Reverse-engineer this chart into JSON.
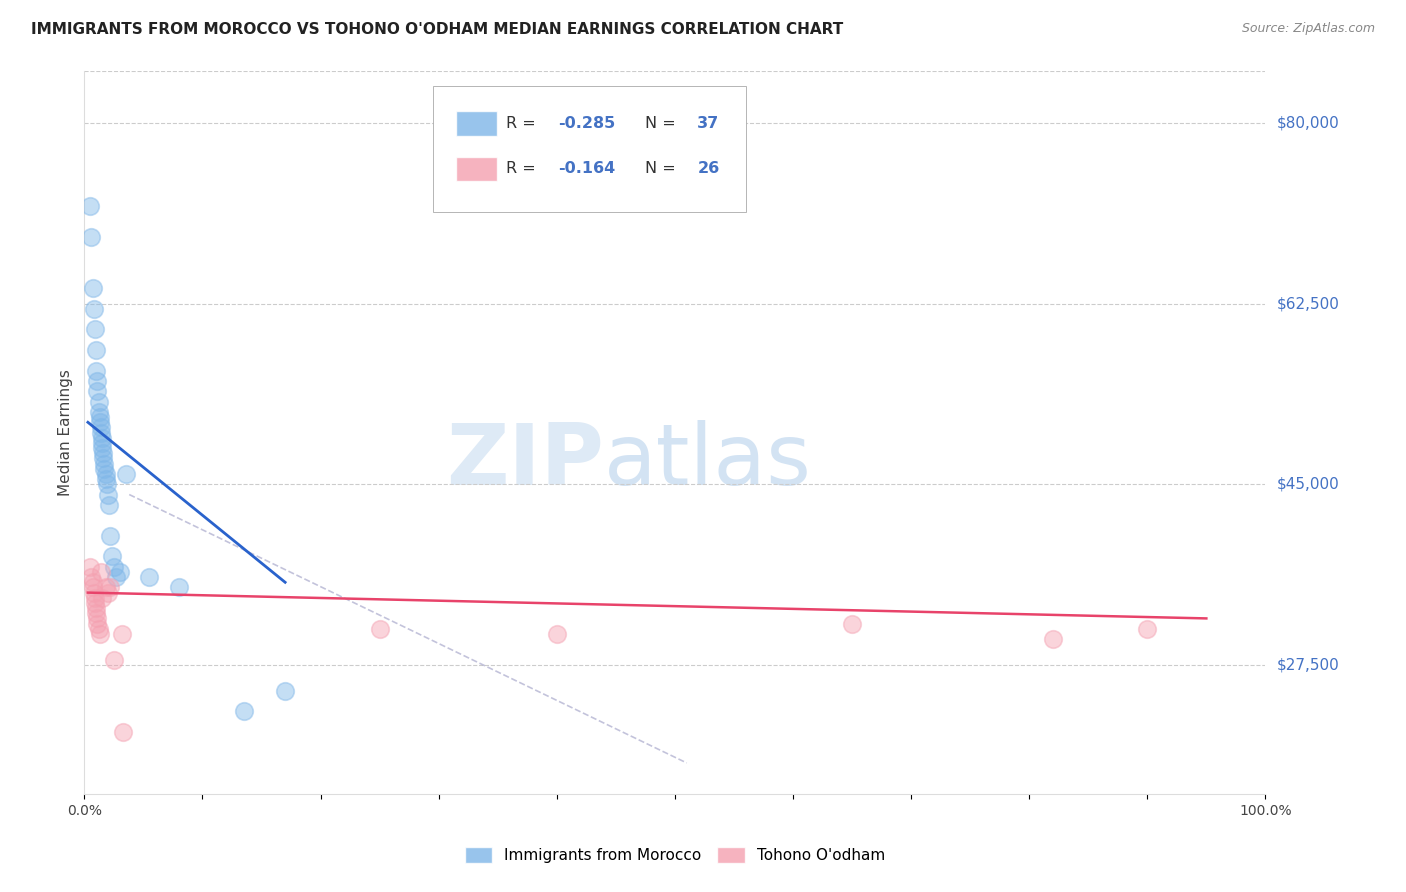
{
  "title": "IMMIGRANTS FROM MOROCCO VS TOHONO O'ODHAM MEDIAN EARNINGS CORRELATION CHART",
  "source": "Source: ZipAtlas.com",
  "ylabel": "Median Earnings",
  "xlim": [
    0.0,
    1.0
  ],
  "ylim": [
    15000,
    85000
  ],
  "ytick_vals": [
    27500,
    45000,
    62500,
    80000
  ],
  "ytick_labels": [
    "$27,500",
    "$45,000",
    "$62,500",
    "$80,000"
  ],
  "xtick_positions": [
    0.0,
    0.1,
    0.2,
    0.3,
    0.4,
    0.5,
    0.6,
    0.7,
    0.8,
    0.9,
    1.0
  ],
  "legend1_label": "Immigrants from Morocco",
  "legend2_label": "Tohono O'odham",
  "r1": "-0.285",
  "n1": "37",
  "r2": "-0.164",
  "n2": "26",
  "blue_color": "#7EB6E8",
  "pink_color": "#F4A0B0",
  "line_blue": "#2962CC",
  "line_pink": "#E8436A",
  "watermark_zip": "ZIP",
  "watermark_atlas": "atlas",
  "blue_scatter_x": [
    0.005,
    0.006,
    0.007,
    0.008,
    0.009,
    0.01,
    0.01,
    0.011,
    0.011,
    0.012,
    0.012,
    0.013,
    0.013,
    0.014,
    0.014,
    0.015,
    0.015,
    0.015,
    0.016,
    0.016,
    0.017,
    0.017,
    0.018,
    0.018,
    0.019,
    0.02,
    0.021,
    0.022,
    0.023,
    0.025,
    0.027,
    0.03,
    0.035,
    0.055,
    0.08,
    0.135,
    0.17
  ],
  "blue_scatter_y": [
    72000,
    69000,
    64000,
    62000,
    60000,
    58000,
    56000,
    55000,
    54000,
    53000,
    52000,
    51500,
    51000,
    50500,
    50000,
    49500,
    49000,
    48500,
    48000,
    47500,
    47000,
    46500,
    46000,
    45500,
    45000,
    44000,
    43000,
    40000,
    38000,
    37000,
    36000,
    36500,
    46000,
    36000,
    35000,
    23000,
    25000
  ],
  "pink_scatter_x": [
    0.005,
    0.006,
    0.007,
    0.007,
    0.008,
    0.009,
    0.009,
    0.01,
    0.01,
    0.011,
    0.011,
    0.012,
    0.013,
    0.014,
    0.015,
    0.018,
    0.02,
    0.022,
    0.025,
    0.032,
    0.033,
    0.25,
    0.4,
    0.65,
    0.82,
    0.9
  ],
  "pink_scatter_y": [
    37000,
    36000,
    35500,
    35000,
    34500,
    34000,
    33500,
    33000,
    32500,
    32000,
    31500,
    31000,
    30500,
    36500,
    34000,
    35000,
    34500,
    35000,
    28000,
    30500,
    21000,
    31000,
    30500,
    31500,
    30000,
    31000
  ],
  "blue_line_x": [
    0.003,
    0.17
  ],
  "blue_line_y": [
    51000,
    35500
  ],
  "pink_line_x": [
    0.003,
    0.95
  ],
  "pink_line_y": [
    34500,
    32000
  ],
  "dashed_line_x": [
    0.038,
    0.51
  ],
  "dashed_line_y": [
    44000,
    18000
  ],
  "background_color": "#FFFFFF",
  "grid_color": "#CCCCCC",
  "grid_style": "--",
  "grid_linewidth": 0.8
}
